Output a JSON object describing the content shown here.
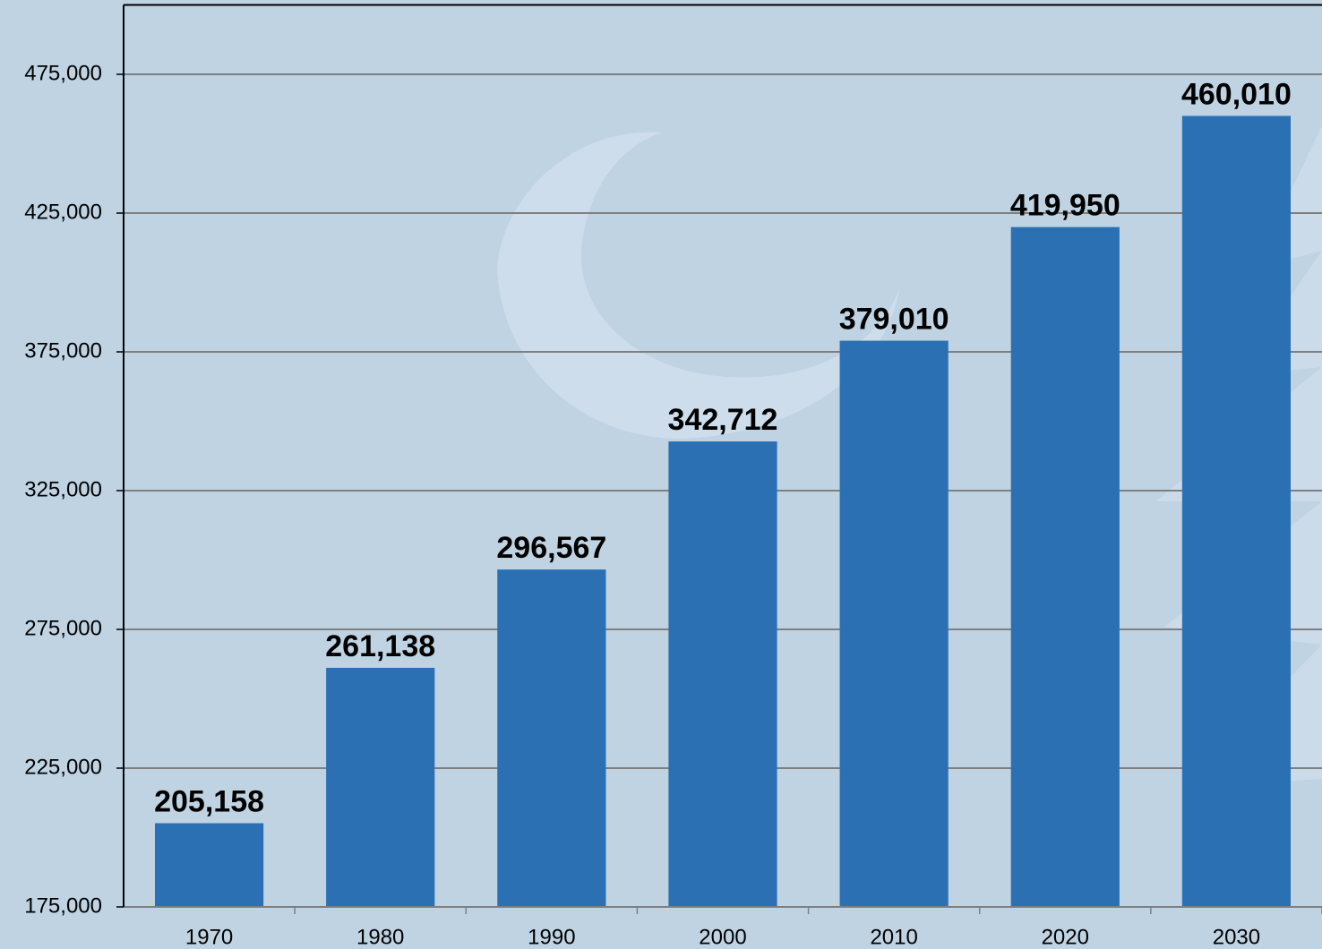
{
  "chart_data": {
    "type": "bar",
    "categories": [
      "1970",
      "1980",
      "1990",
      "2000",
      "2010",
      "2020",
      "2030"
    ],
    "values": [
      205158,
      261138,
      296567,
      342712,
      379010,
      419950,
      460010
    ],
    "value_labels": [
      "205,158",
      "261,138",
      "296,567",
      "342,712",
      "379,010",
      "419,950",
      "460,010"
    ],
    "color": "#2b70b3",
    "ylim": [
      175000,
      500000
    ],
    "yticks": [
      {
        "value": 175000,
        "label": "175,000"
      },
      {
        "value": 225000,
        "label": "225,000"
      },
      {
        "value": 275000,
        "label": "275,000"
      },
      {
        "value": 325000,
        "label": "325,000"
      },
      {
        "value": 375000,
        "label": "375,000"
      },
      {
        "value": 425000,
        "label": "425,000"
      },
      {
        "value": 475000,
        "label": "475,000"
      }
    ],
    "grid": true
  }
}
